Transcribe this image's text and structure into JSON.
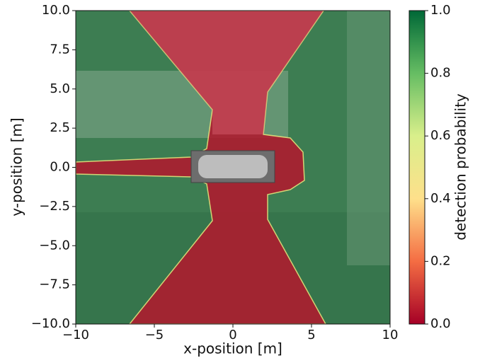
{
  "chart_data": {
    "type": "heatmap",
    "x_label": "x-position [m]",
    "y_label": "y-position [m]",
    "xlim": [
      -10,
      10
    ],
    "ylim": [
      -10,
      10
    ],
    "xticks": [
      {
        "value": -10,
        "label": "−10"
      },
      {
        "value": -5,
        "label": "−5"
      },
      0,
      5,
      10
    ],
    "yticks": [
      {
        "value": 10,
        "label": "10.0"
      },
      {
        "value": 7.5,
        "label": "7.5"
      },
      {
        "value": 5,
        "label": "5.0"
      },
      {
        "value": 2.5,
        "label": "2.5"
      },
      {
        "value": 0,
        "label": "0.0"
      },
      {
        "value": -2.5,
        "label": "−2.5"
      },
      {
        "value": -5,
        "label": "−5.0"
      },
      {
        "value": -7.5,
        "label": "−7.5"
      },
      {
        "value": -10,
        "label": "−10.0"
      }
    ],
    "colorbar": {
      "label": "detection probability",
      "lim": [
        0,
        1
      ],
      "ticks": [
        {
          "value": 0,
          "label": "0.0"
        },
        {
          "value": 0.2,
          "label": "0.2"
        },
        {
          "value": 0.4,
          "label": "0.4"
        },
        {
          "value": 0.6,
          "label": "0.6"
        },
        {
          "value": 0.8,
          "label": "0.8"
        },
        {
          "value": 1,
          "label": "1.0"
        }
      ],
      "colors": [
        "#a50026",
        "#f46d43",
        "#fee08b",
        "#d9ef8b",
        "#66bd63",
        "#006837"
      ]
    }
  }
}
